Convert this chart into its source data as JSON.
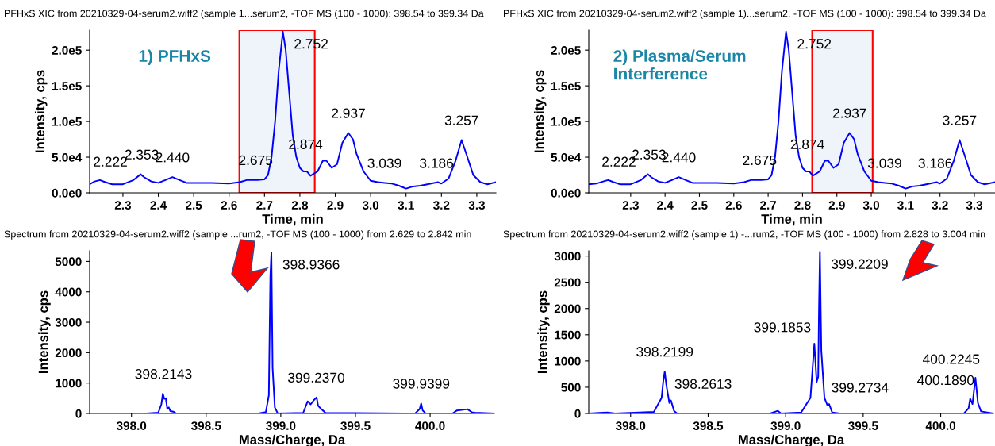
{
  "chart_data": [
    {
      "type": "line",
      "title": "PFHxS XIC from 20210329-04-serum2.wiff2 (sample 1...serum2, -TOF MS (100 - 1000): 398.54 to 399.34 Da",
      "xlabel": "Time, min",
      "ylabel": "Intensity, cps",
      "xlim": [
        2.206,
        3.354
      ],
      "xticks": [
        2.3,
        2.4,
        2.5,
        2.6,
        2.7,
        2.8,
        2.9,
        {
          "value": 3,
          "label": "3.0"
        },
        3.1,
        3.2,
        3.3
      ],
      "ylim": [
        0,
        228000
      ],
      "yticks": [
        {
          "value": 0,
          "label": "0.0e0"
        },
        {
          "value": 50000,
          "label": "5.0e4"
        },
        {
          "value": 100000,
          "label": "1.0e5"
        },
        {
          "value": 150000,
          "label": "1.5e5"
        },
        {
          "value": 200000,
          "label": "2.0e5"
        }
      ],
      "series": [
        {
          "color": "#0000ff",
          "x": [
            2.206,
            2.22,
            2.235,
            2.25,
            2.27,
            2.3,
            2.33,
            2.35,
            2.36,
            2.38,
            2.4,
            2.42,
            2.44,
            2.46,
            2.48,
            2.5,
            2.55,
            2.6,
            2.63,
            2.65,
            2.68,
            2.7,
            2.71,
            2.72,
            2.73,
            2.74,
            2.752,
            2.76,
            2.77,
            2.78,
            2.79,
            2.8,
            2.81,
            2.82,
            2.83,
            2.85,
            2.865,
            2.875,
            2.89,
            2.905,
            2.92,
            2.937,
            2.95,
            2.96,
            2.98,
            3.0,
            3.02,
            3.04,
            3.06,
            3.08,
            3.1,
            3.12,
            3.14,
            3.16,
            3.19,
            3.2,
            3.22,
            3.24,
            3.257,
            3.27,
            3.29,
            3.31,
            3.33,
            3.354
          ],
          "values": [
            12000,
            16000,
            18000,
            15000,
            12000,
            12000,
            18000,
            26000,
            22000,
            16000,
            14000,
            18000,
            22000,
            18000,
            14000,
            14000,
            14000,
            13000,
            15000,
            18000,
            18000,
            19000,
            25000,
            50000,
            100000,
            170000,
            226000,
            200000,
            140000,
            80000,
            50000,
            35000,
            30000,
            30000,
            24000,
            30000,
            45000,
            45000,
            35000,
            40000,
            70000,
            84000,
            75000,
            55000,
            30000,
            17000,
            15000,
            14000,
            13000,
            10000,
            6000,
            9000,
            10000,
            12000,
            15000,
            13000,
            20000,
            45000,
            74000,
            55000,
            25000,
            15000,
            12000,
            15000
          ]
        }
      ],
      "bands": [
        {
          "axis": "x",
          "from": 2.629,
          "to": 2.842,
          "color": "#eef4fa"
        }
      ],
      "annotations": [
        "1) PFHxS",
        {
          "text": "2.222",
          "x": 2.222,
          "y": 16000
        },
        {
          "text": "2.353",
          "x": 2.353,
          "y": 26000
        },
        {
          "text": "2.440",
          "x": 2.44,
          "y": 22000
        },
        {
          "text": "2.675",
          "x": 2.675,
          "y": 18000
        },
        {
          "text": "2.752",
          "x": 2.752,
          "y": 226000
        },
        {
          "text": "2.874",
          "x": 2.874,
          "y": 45000
        },
        {
          "text": "2.937",
          "x": 2.937,
          "y": 84000
        },
        {
          "text": "3.039",
          "x": 3.039,
          "y": 14000
        },
        {
          "text": "3.186",
          "x": 3.186,
          "y": 14000
        },
        {
          "text": "3.257",
          "x": 3.257,
          "y": 74000
        }
      ]
    },
    {
      "type": "line",
      "title": "PFHxS XIC from 20210329-04-serum2.wiff2 (sample 1)...serum2, -TOF MS (100 - 1000): 398.54 to 399.34 Da",
      "xlabel": "Time, min",
      "ylabel": "Intensity, cps",
      "xlim": [
        2.178,
        3.36
      ],
      "xticks": [
        2.3,
        2.4,
        2.5,
        2.6,
        2.7,
        2.8,
        2.9,
        {
          "value": 3,
          "label": "3.0"
        },
        3.1,
        3.2,
        3.3
      ],
      "ylim": [
        0,
        228000
      ],
      "yticks": [
        {
          "value": 0,
          "label": "0.0e0"
        },
        {
          "value": 50000,
          "label": "5.0e4"
        },
        {
          "value": 100000,
          "label": "1.0e5"
        },
        {
          "value": 150000,
          "label": "1.5e5"
        },
        {
          "value": 200000,
          "label": "2.0e5"
        }
      ],
      "series": [
        {
          "color": "#0000ff",
          "x": [
            2.178,
            2.2,
            2.22,
            2.235,
            2.25,
            2.27,
            2.3,
            2.33,
            2.35,
            2.36,
            2.38,
            2.4,
            2.42,
            2.44,
            2.46,
            2.48,
            2.5,
            2.55,
            2.6,
            2.63,
            2.65,
            2.68,
            2.7,
            2.71,
            2.72,
            2.73,
            2.74,
            2.752,
            2.76,
            2.77,
            2.78,
            2.79,
            2.8,
            2.81,
            2.82,
            2.83,
            2.85,
            2.865,
            2.875,
            2.89,
            2.905,
            2.92,
            2.937,
            2.95,
            2.96,
            2.98,
            3.0,
            3.02,
            3.04,
            3.06,
            3.08,
            3.1,
            3.12,
            3.14,
            3.16,
            3.19,
            3.2,
            3.22,
            3.24,
            3.257,
            3.27,
            3.29,
            3.31,
            3.33,
            3.36
          ],
          "values": [
            12000,
            13000,
            16000,
            18000,
            15000,
            12000,
            12000,
            18000,
            26000,
            22000,
            16000,
            14000,
            18000,
            22000,
            18000,
            14000,
            14000,
            14000,
            13000,
            15000,
            18000,
            18000,
            19000,
            25000,
            50000,
            100000,
            170000,
            226000,
            200000,
            140000,
            80000,
            50000,
            35000,
            30000,
            30000,
            24000,
            30000,
            45000,
            45000,
            35000,
            40000,
            70000,
            84000,
            75000,
            55000,
            30000,
            17000,
            15000,
            14000,
            13000,
            10000,
            6000,
            9000,
            10000,
            12000,
            15000,
            13000,
            20000,
            45000,
            74000,
            55000,
            25000,
            15000,
            12000,
            15000
          ]
        }
      ],
      "bands": [
        {
          "axis": "x",
          "from": 2.828,
          "to": 3.004,
          "color": "#eef4fa"
        }
      ],
      "annotations": [
        "2) Plasma/Serum\nInterference",
        {
          "text": "2.222",
          "x": 2.222,
          "y": 16000
        },
        {
          "text": "2.353",
          "x": 2.353,
          "y": 26000
        },
        {
          "text": "2.440",
          "x": 2.44,
          "y": 22000
        },
        {
          "text": "2.675",
          "x": 2.675,
          "y": 18000
        },
        {
          "text": "2.752",
          "x": 2.752,
          "y": 226000
        },
        {
          "text": "2.874",
          "x": 2.874,
          "y": 45000
        },
        {
          "text": "2.937",
          "x": 2.937,
          "y": 84000
        },
        {
          "text": "3.039",
          "x": 3.039,
          "y": 14000
        },
        {
          "text": "3.186",
          "x": 3.186,
          "y": 14000
        },
        {
          "text": "3.257",
          "x": 3.257,
          "y": 74000
        }
      ]
    },
    {
      "type": "line",
      "title": "Spectrum from 20210329-04-serum2.wiff2 (sample ...rum2, -TOF MS (100 - 1000) from 2.629 to 2.842 min",
      "xlabel": "Mass/Charge, Da",
      "ylabel": "Intensity, cps",
      "xlim": [
        397.72,
        400.43
      ],
      "xticks": [
        {
          "value": 398,
          "label": "398.0"
        },
        398.5,
        {
          "value": 399,
          "label": "399.0"
        },
        399.5,
        {
          "value": 400,
          "label": "400.0"
        }
      ],
      "ylim": [
        0,
        5350
      ],
      "yticks": [
        0,
        1000,
        2000,
        3000,
        4000,
        5000
      ],
      "series": [
        {
          "color": "#0000ff",
          "x": [
            397.72,
            398.1,
            398.18,
            398.2,
            398.21,
            398.22,
            398.23,
            398.24,
            398.25,
            398.26,
            398.28,
            398.3,
            398.85,
            398.9,
            398.92,
            398.93,
            398.937,
            398.945,
            398.96,
            398.98,
            399.15,
            399.18,
            399.2,
            399.22,
            399.24,
            399.25,
            399.27,
            399.3,
            399.9,
            399.93,
            399.94,
            399.95,
            399.97,
            400.15,
            400.18,
            400.22,
            400.25,
            400.28,
            400.3,
            400.43
          ],
          "values": [
            0,
            0,
            30,
            300,
            650,
            480,
            500,
            150,
            200,
            80,
            60,
            0,
            0,
            50,
            600,
            4500,
            5300,
            1500,
            200,
            0,
            20,
            400,
            300,
            430,
            530,
            250,
            150,
            20,
            0,
            150,
            330,
            100,
            0,
            0,
            100,
            120,
            140,
            40,
            30,
            0
          ]
        }
      ],
      "annotations": [
        {
          "text": "398.2143",
          "x": 398.214,
          "y": 650
        },
        {
          "text": "398.9366",
          "x": 398.937,
          "y": 5300
        },
        {
          "text": "399.2370",
          "x": 399.237,
          "y": 530
        },
        {
          "text": "399.9399",
          "x": 399.94,
          "y": 330
        }
      ]
    },
    {
      "type": "line",
      "title": "Spectrum from 20210329-04-serum2.wiff2 (sample 1) -...rum2, -TOF MS (100 - 1000) from 2.828 to 3.004 min",
      "xlabel": "Mass/Charge, Da",
      "ylabel": "Intensity, cps",
      "xlim": [
        397.73,
        400.34
      ],
      "xticks": [
        {
          "value": 398,
          "label": "398.0"
        },
        398.5,
        {
          "value": 399,
          "label": "399.0"
        },
        399.5,
        {
          "value": 400,
          "label": "400.0"
        }
      ],
      "ylim": [
        0,
        3100
      ],
      "yticks": [
        0,
        500,
        1000,
        1500,
        2000,
        2500,
        3000
      ],
      "series": [
        {
          "color": "#0000ff",
          "x": [
            397.73,
            397.85,
            397.9,
            398.15,
            398.2,
            398.21,
            398.22,
            398.23,
            398.25,
            398.26,
            398.28,
            398.3,
            398.9,
            398.95,
            398.97,
            399.1,
            399.16,
            399.185,
            399.2,
            399.21,
            399.215,
            399.221,
            399.23,
            399.25,
            399.27,
            399.28,
            399.3,
            399.35,
            400.15,
            400.18,
            400.19,
            400.205,
            400.224,
            400.24,
            400.26,
            400.34
          ],
          "values": [
            0,
            20,
            0,
            30,
            300,
            600,
            800,
            550,
            200,
            250,
            50,
            0,
            0,
            50,
            0,
            20,
            300,
            1330,
            600,
            700,
            2000,
            3080,
            1200,
            300,
            150,
            180,
            20,
            0,
            0,
            100,
            280,
            180,
            680,
            200,
            40,
            0
          ]
        }
      ],
      "annotations": [
        {
          "text": "398.2199",
          "x": 398.22,
          "y": 800
        },
        {
          "text": "398.2613",
          "x": 398.261,
          "y": 250
        },
        {
          "text": "399.1853",
          "x": 399.185,
          "y": 1330
        },
        {
          "text": "399.2209",
          "x": 399.221,
          "y": 3080
        },
        {
          "text": "399.2734",
          "x": 399.273,
          "y": 180
        },
        {
          "text": "400.1890",
          "x": 400.189,
          "y": 280
        },
        {
          "text": "400.2245",
          "x": 400.2245,
          "y": 680
        }
      ]
    }
  ]
}
